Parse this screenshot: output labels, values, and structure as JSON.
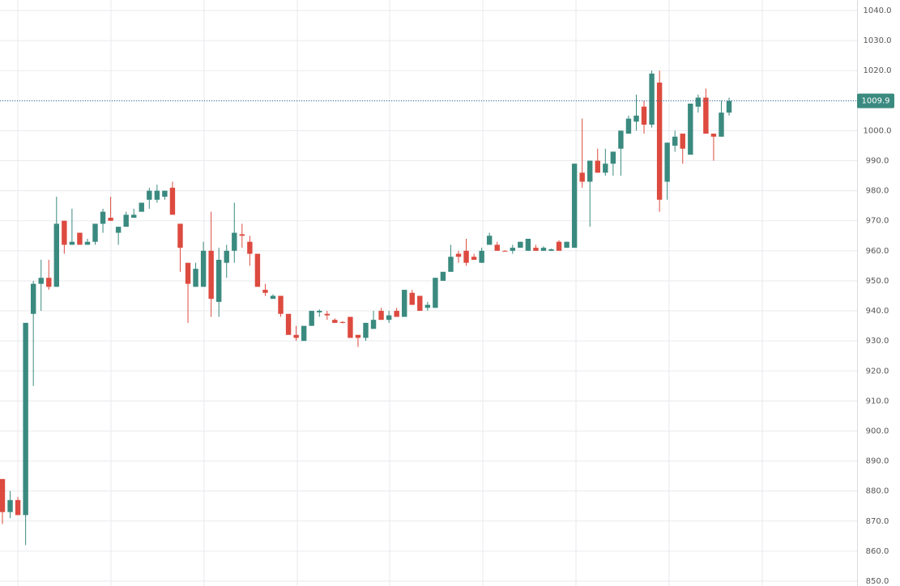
{
  "chart_data": {
    "type": "candlestick",
    "open": [
      884,
      873,
      877,
      872,
      939,
      949,
      951,
      948,
      970,
      962,
      966,
      962,
      963,
      969,
      971,
      966,
      968,
      971,
      973,
      977,
      977,
      978,
      981,
      969,
      956,
      948,
      948,
      960,
      943,
      956,
      960,
      965.5,
      963,
      959,
      947,
      944,
      945,
      939,
      932,
      930,
      935,
      939.5,
      939,
      937,
      936.3,
      938,
      932,
      931,
      934,
      940,
      937,
      940,
      938,
      946,
      945,
      941,
      941,
      950,
      953,
      959,
      960,
      958,
      956,
      962,
      962,
      960,
      960,
      961,
      960,
      961,
      960,
      960,
      963,
      961,
      961,
      986,
      983,
      990,
      986,
      989,
      994,
      999,
      1003,
      1008,
      1002,
      1016,
      983,
      995,
      999,
      992,
      1008,
      1011,
      999,
      998,
      1006
    ],
    "high": [
      884,
      880,
      878,
      936,
      950,
      957,
      957,
      978,
      970,
      974,
      966,
      964,
      969,
      974,
      978,
      968,
      973,
      974,
      976,
      981,
      982,
      980,
      983,
      969,
      956,
      956,
      963,
      973,
      961,
      962,
      976,
      969,
      965,
      959,
      949,
      945.5,
      945,
      939,
      935,
      935,
      940,
      940.5,
      940,
      937.5,
      936.5,
      938,
      932,
      936,
      940,
      941,
      940,
      941,
      947,
      947,
      945,
      943,
      951,
      953,
      962,
      960,
      964,
      959,
      961,
      966,
      963,
      960.2,
      962,
      963,
      964,
      962,
      961.5,
      960.7,
      963.5,
      963,
      989,
      1004,
      990,
      994,
      994,
      993,
      1000,
      1005,
      1012,
      1010,
      1020,
      1020,
      996,
      1000,
      999,
      1009,
      1012,
      1014,
      999,
      1010,
      1011
    ],
    "low": [
      869,
      871,
      872,
      862,
      915,
      940,
      947,
      948,
      959,
      962,
      962,
      962,
      962,
      966,
      970,
      962,
      968,
      971,
      973,
      974,
      976,
      977,
      972,
      953,
      936,
      948,
      948,
      938,
      938,
      951,
      956,
      961,
      955,
      948,
      945,
      944,
      938,
      932,
      930,
      930,
      935,
      938,
      937,
      936,
      935.8,
      931,
      928,
      930,
      934,
      937,
      936,
      938,
      938,
      942,
      940,
      940,
      941,
      950,
      953,
      956,
      955,
      957,
      956,
      962,
      960,
      959.8,
      959,
      961,
      960,
      960,
      960,
      960,
      960,
      961,
      961,
      981,
      968,
      986,
      985,
      985,
      985,
      999,
      1000,
      999,
      1001,
      973,
      977,
      993,
      989,
      992,
      1006,
      999,
      990,
      998,
      1005
    ],
    "close": [
      873,
      877,
      872,
      936,
      949,
      951,
      948,
      969,
      962,
      963,
      962,
      963,
      969,
      973,
      970,
      968,
      972,
      972,
      976,
      980,
      980,
      980,
      972,
      961,
      949,
      954,
      960,
      944,
      957,
      960,
      966,
      965,
      959,
      948,
      946,
      945,
      939,
      932,
      931,
      935,
      940,
      940,
      938.5,
      936,
      936,
      931,
      931,
      936,
      937,
      937,
      938.5,
      938,
      947,
      942,
      940,
      942,
      951,
      953,
      958,
      958,
      956,
      957,
      960,
      965,
      960,
      959.8,
      961,
      963,
      964,
      960,
      961,
      960.5,
      960,
      963,
      989,
      983,
      990,
      986,
      989,
      993,
      1000,
      1004,
      1005,
      1002,
      1019,
      977,
      996,
      998,
      994,
      1009,
      1011,
      999,
      998,
      1006,
      1009.9
    ],
    "up_color": "#3a8a7f",
    "down_color": "#dd4a3f",
    "price_line_color": "#2a6a9a",
    "ylim": [
      850,
      1040
    ],
    "yticks": [
      {
        "value": 850,
        "label": "850.0"
      },
      {
        "value": 860,
        "label": "860.0"
      },
      {
        "value": 870,
        "label": "870.0"
      },
      {
        "value": 880,
        "label": "880.0"
      },
      {
        "value": 890,
        "label": "890.0"
      },
      {
        "value": 900,
        "label": "900.0"
      },
      {
        "value": 910,
        "label": "910.0"
      },
      {
        "value": 920,
        "label": "920.0"
      },
      {
        "value": 930,
        "label": "930.0"
      },
      {
        "value": 940,
        "label": "940.0"
      },
      {
        "value": 950,
        "label": "950.0"
      },
      {
        "value": 960,
        "label": "960.0"
      },
      {
        "value": 970,
        "label": "970.0"
      },
      {
        "value": 980,
        "label": "980.0"
      },
      {
        "value": 990,
        "label": "990.0"
      },
      {
        "value": 1000,
        "label": "1000.0"
      },
      {
        "value": 1010,
        "label": "1010.0"
      },
      {
        "value": 1020,
        "label": "1020.0"
      },
      {
        "value": 1030,
        "label": "1030.0"
      },
      {
        "value": 1040,
        "label": "1040.0"
      }
    ],
    "grid": true
  }
}
